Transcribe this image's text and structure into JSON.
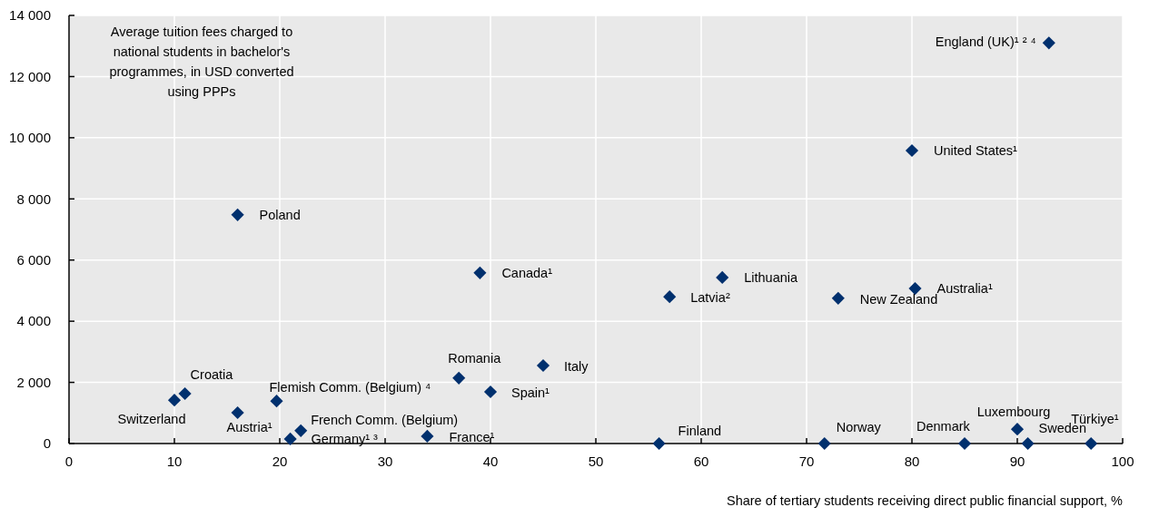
{
  "chart_data": {
    "type": "scatter",
    "ylabel": "Average tuition fees charged to national students in bachelor's programmes, in USD converted using PPPs",
    "xlabel": "Share of tertiary students receiving direct public financial support, %",
    "xlim": [
      0,
      100
    ],
    "xticks": [
      0,
      10,
      20,
      30,
      40,
      50,
      60,
      70,
      80,
      90,
      100
    ],
    "ylim": [
      0,
      14000
    ],
    "yticks": [
      {
        "value": 0,
        "label": "0"
      },
      {
        "value": 2000,
        "label": "2 000"
      },
      {
        "value": 4000,
        "label": "4 000"
      },
      {
        "value": 6000,
        "label": "6 000"
      },
      {
        "value": 8000,
        "label": "8 000"
      },
      {
        "value": 10000,
        "label": "10 000"
      },
      {
        "value": 12000,
        "label": "12 000"
      },
      {
        "value": 14000,
        "label": "14 000"
      }
    ],
    "grid": true,
    "marker": "diamond",
    "series": [
      {
        "color": "#00306e",
        "x": [
          93,
          80,
          16,
          39,
          62,
          57,
          73,
          80.3,
          37,
          45,
          40,
          11,
          10,
          16,
          19.7,
          22,
          21,
          34,
          56,
          71.7,
          85,
          90,
          91,
          97
        ],
        "values": [
          13100,
          9580,
          7480,
          5580,
          5430,
          4800,
          4750,
          5070,
          2140,
          2550,
          1690,
          1630,
          1420,
          1010,
          1390,
          420,
          150,
          240,
          0,
          0,
          0,
          470,
          0,
          0
        ]
      }
    ],
    "annotations": [
      {
        "text": "England (UK)¹ ² ⁴",
        "x": 93,
        "y": 13100
      },
      {
        "text": "United States¹",
        "x": 80,
        "y": 9580
      },
      {
        "text": "Poland",
        "x": 16,
        "y": 7480
      },
      {
        "text": "Canada¹",
        "x": 39,
        "y": 5580
      },
      {
        "text": "Lithuania",
        "x": 62,
        "y": 5430
      },
      {
        "text": "Latvia²",
        "x": 57,
        "y": 4800
      },
      {
        "text": "New Zealand",
        "x": 73,
        "y": 4750
      },
      {
        "text": "Australia¹",
        "x": 80.3,
        "y": 5070
      },
      {
        "text": "Romania",
        "x": 37,
        "y": 2140
      },
      {
        "text": "Italy",
        "x": 45,
        "y": 2550
      },
      {
        "text": "Spain¹",
        "x": 40,
        "y": 1690
      },
      {
        "text": "Croatia",
        "x": 11,
        "y": 1630
      },
      {
        "text": "Switzerland",
        "x": 10,
        "y": 1420
      },
      {
        "text": "Austria¹",
        "x": 16,
        "y": 1010
      },
      {
        "text": "Flemish Comm. (Belgium) ⁴",
        "x": 19.7,
        "y": 1390
      },
      {
        "text": "French Comm. (Belgium)",
        "x": 22,
        "y": 420
      },
      {
        "text": "Germany¹ ³",
        "x": 21,
        "y": 150
      },
      {
        "text": "France¹",
        "x": 34,
        "y": 240
      },
      {
        "text": "Finland",
        "x": 56,
        "y": 0
      },
      {
        "text": "Norway",
        "x": 71.7,
        "y": 0
      },
      {
        "text": "Denmark",
        "x": 85,
        "y": 0
      },
      {
        "text": "Luxembourg",
        "x": 90,
        "y": 470
      },
      {
        "text": "Sweden",
        "x": 91,
        "y": 0
      },
      {
        "text": "Türkiye¹",
        "x": 97,
        "y": 0
      }
    ]
  }
}
